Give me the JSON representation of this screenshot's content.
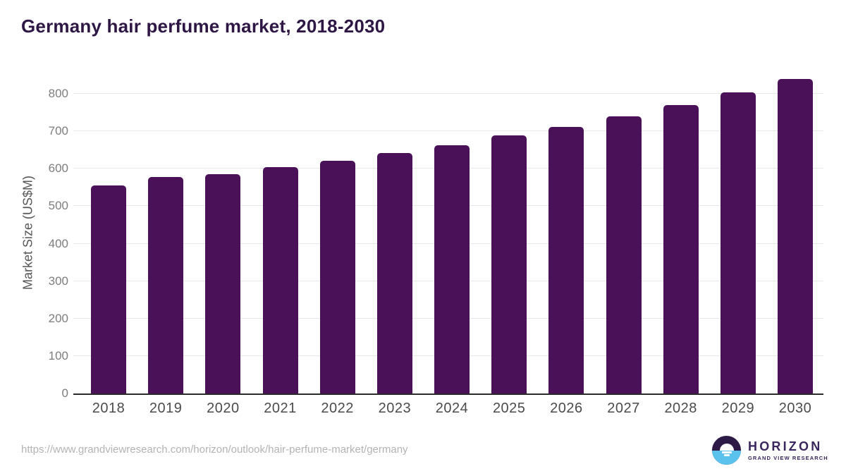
{
  "page": {
    "title": "Germany hair perfume market, 2018-2030",
    "source_url": "https://www.grandviewresearch.com/horizon/outlook/hair-perfume-market/germany"
  },
  "logo": {
    "name": "HORIZON",
    "tagline": "GRAND VIEW RESEARCH"
  },
  "colors": {
    "bar": "#4a1159",
    "title": "#2e1745",
    "axis_line": "#2b2b2b",
    "gridline": "#e7e7e7",
    "y_tick_label": "#7d7d7d",
    "x_label": "#4b4b4b",
    "y_axis_title": "#565656",
    "url_text": "#b3b3b3",
    "logo_purple": "#39265e",
    "logo_dark": "#2e1a47",
    "logo_blue": "#5bc2ee"
  },
  "chart_data": {
    "type": "bar",
    "title": "Germany hair perfume market, 2018-2030",
    "categories": [
      "2018",
      "2019",
      "2020",
      "2021",
      "2022",
      "2023",
      "2024",
      "2025",
      "2026",
      "2027",
      "2028",
      "2029",
      "2030"
    ],
    "values": [
      555,
      577,
      586,
      604,
      622,
      642,
      663,
      689,
      712,
      740,
      770,
      803,
      840
    ],
    "xlabel": "",
    "ylabel": "Market Size (US$M)",
    "ylim": [
      0,
      865
    ],
    "yticks": [
      0,
      100,
      200,
      300,
      400,
      500,
      600,
      700,
      800
    ],
    "grid": "horizontal",
    "legend": "none",
    "bar_color": "#4a1159"
  }
}
